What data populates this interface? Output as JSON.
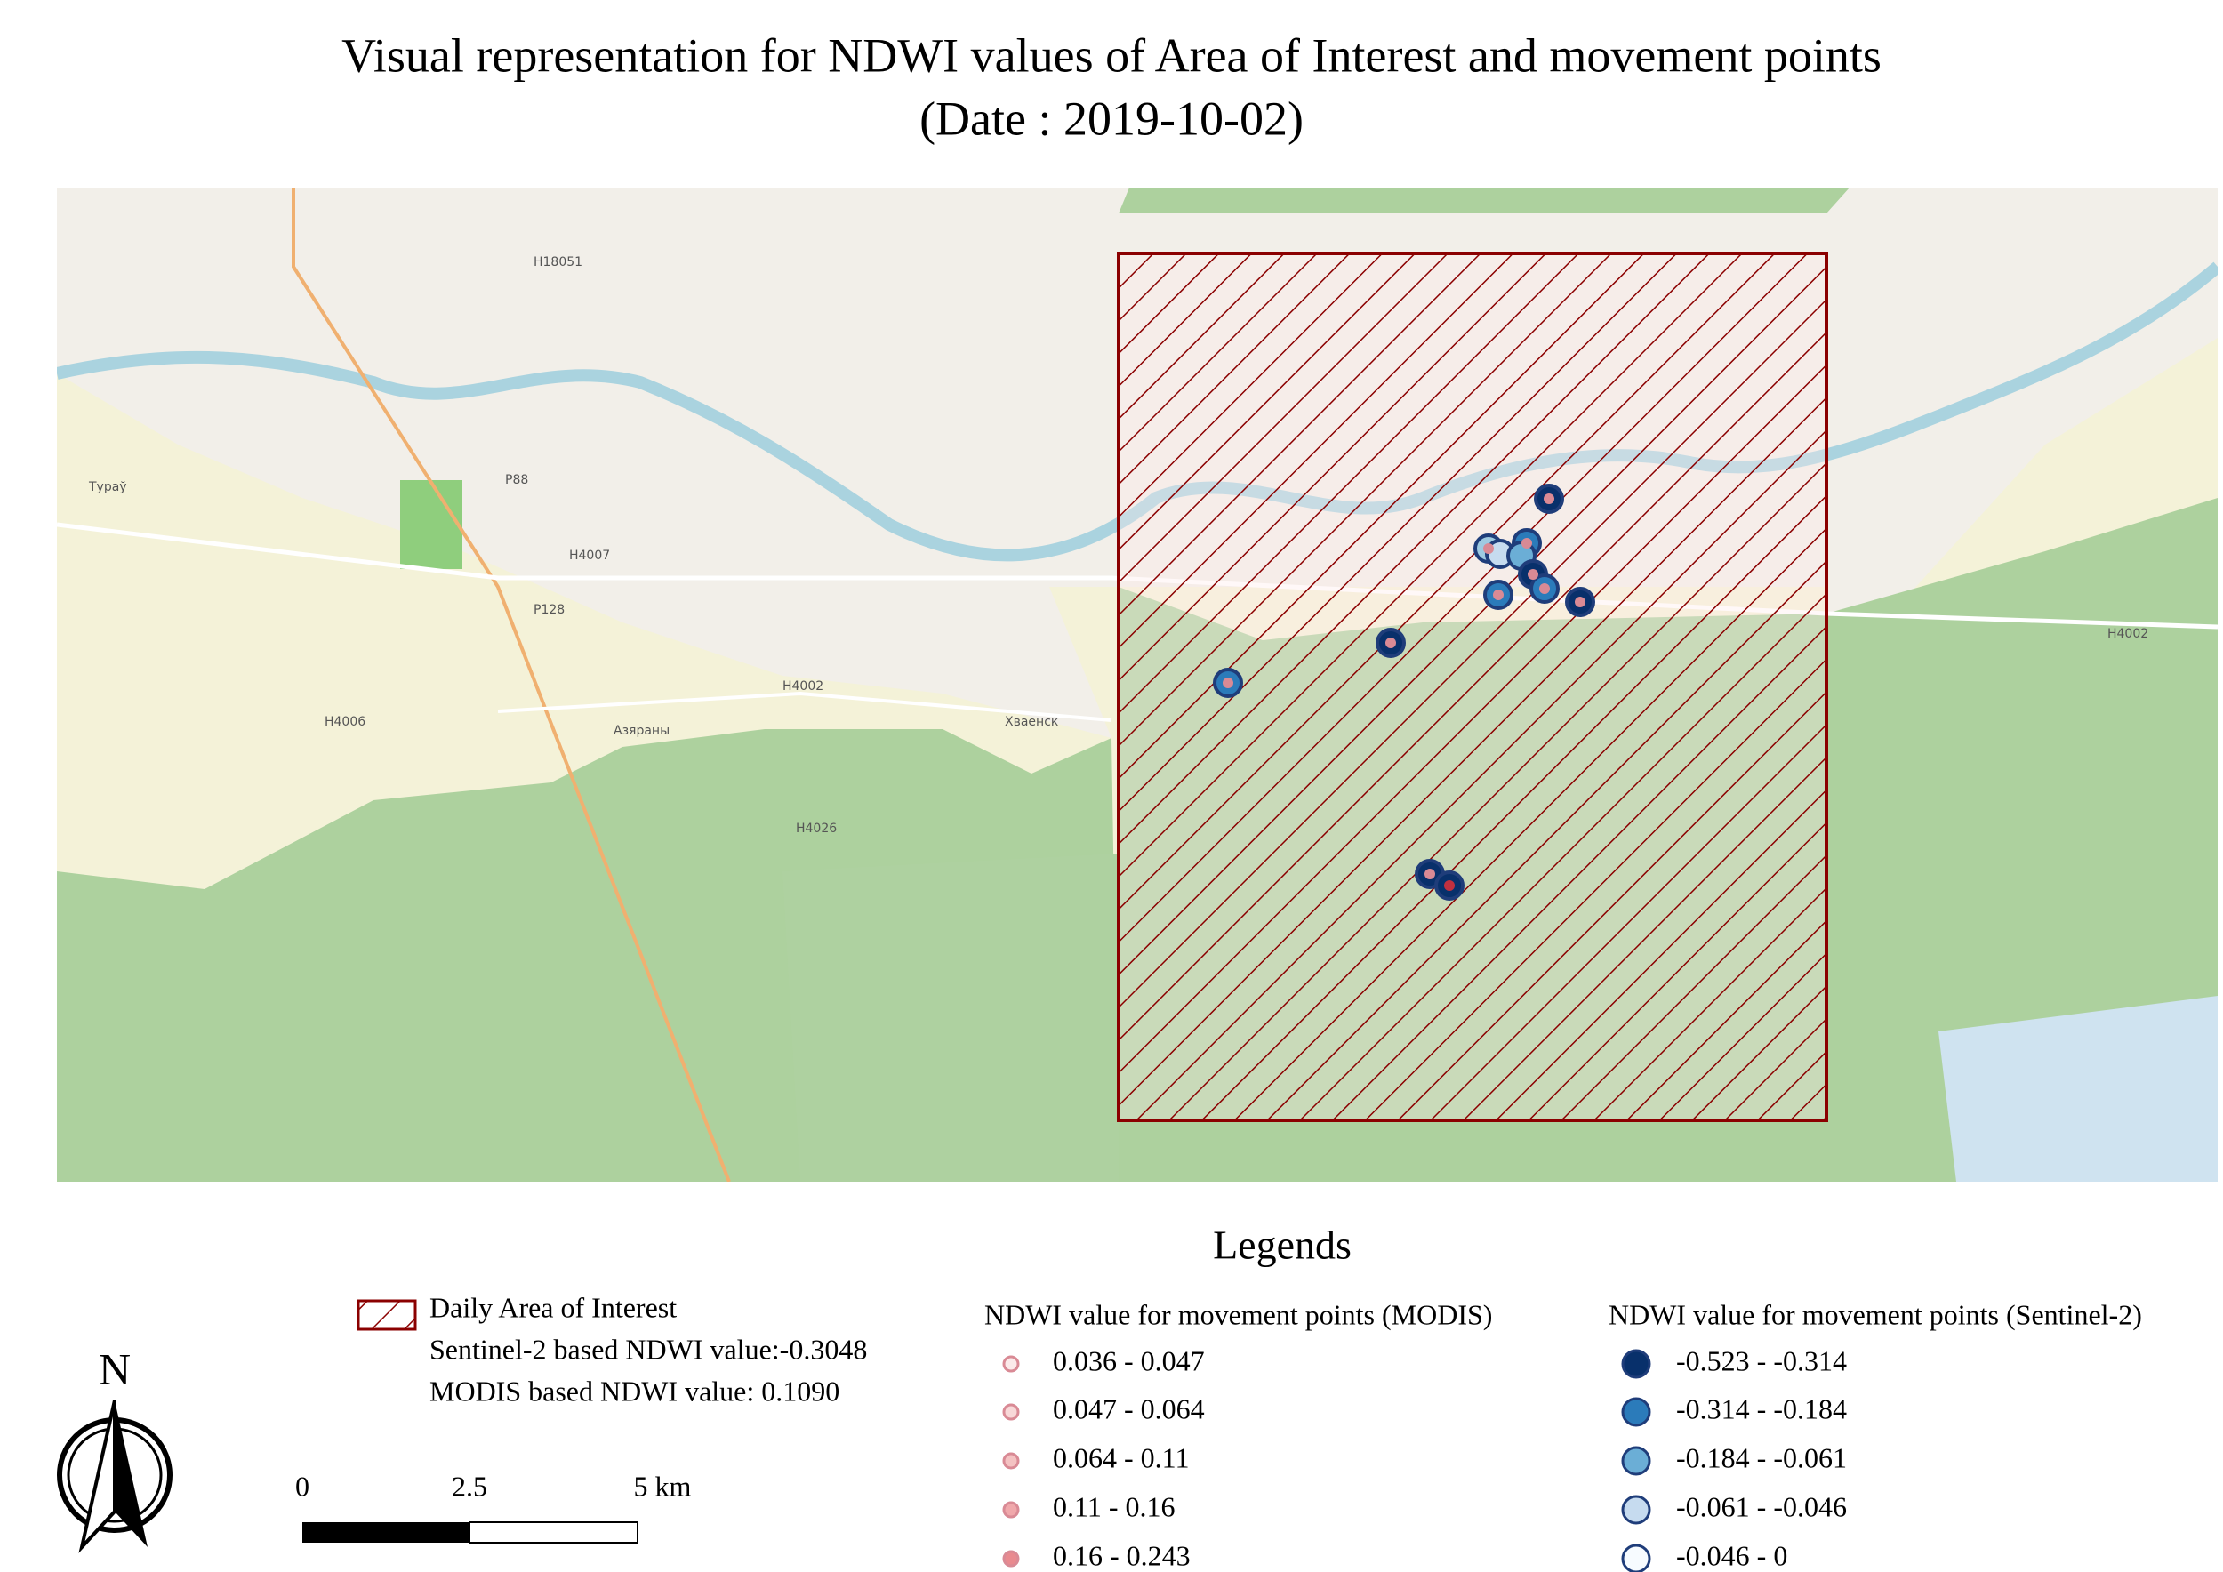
{
  "title": {
    "line1": "Visual representation for NDWI values of Area of Interest and movement points",
    "line2": "(Date : 2019-10-02)"
  },
  "map": {
    "labels": [
      "Тураў",
      "Азяраны",
      "Хваенск",
      "H4002",
      "H4002",
      "P88",
      "P128",
      "H4006",
      "H4026",
      "H4007",
      "H18051"
    ]
  },
  "legend": {
    "title": "Legends",
    "aoi": {
      "label": "Daily Area of Interest",
      "sentinel": "Sentinel-2 based NDWI value:-0.3048",
      "modis": "MODIS based NDWI value: 0.1090"
    },
    "modis": {
      "title": "NDWI value for movement points (MODIS)",
      "classes": [
        "0.036 - 0.047",
        "0.047 - 0.064",
        "0.064 - 0.11",
        "0.11 - 0.16",
        "0.16 - 0.243"
      ]
    },
    "sentinel": {
      "title": "NDWI value for movement points (Sentinel-2)",
      "classes": [
        "-0.523 - -0.314",
        "-0.314 - -0.184",
        "-0.184 - -0.061",
        "-0.061 - -0.046",
        "-0.046 - 0"
      ]
    }
  },
  "north": "N",
  "scale_bar": [
    "0",
    "2.5",
    "5 km"
  ]
}
